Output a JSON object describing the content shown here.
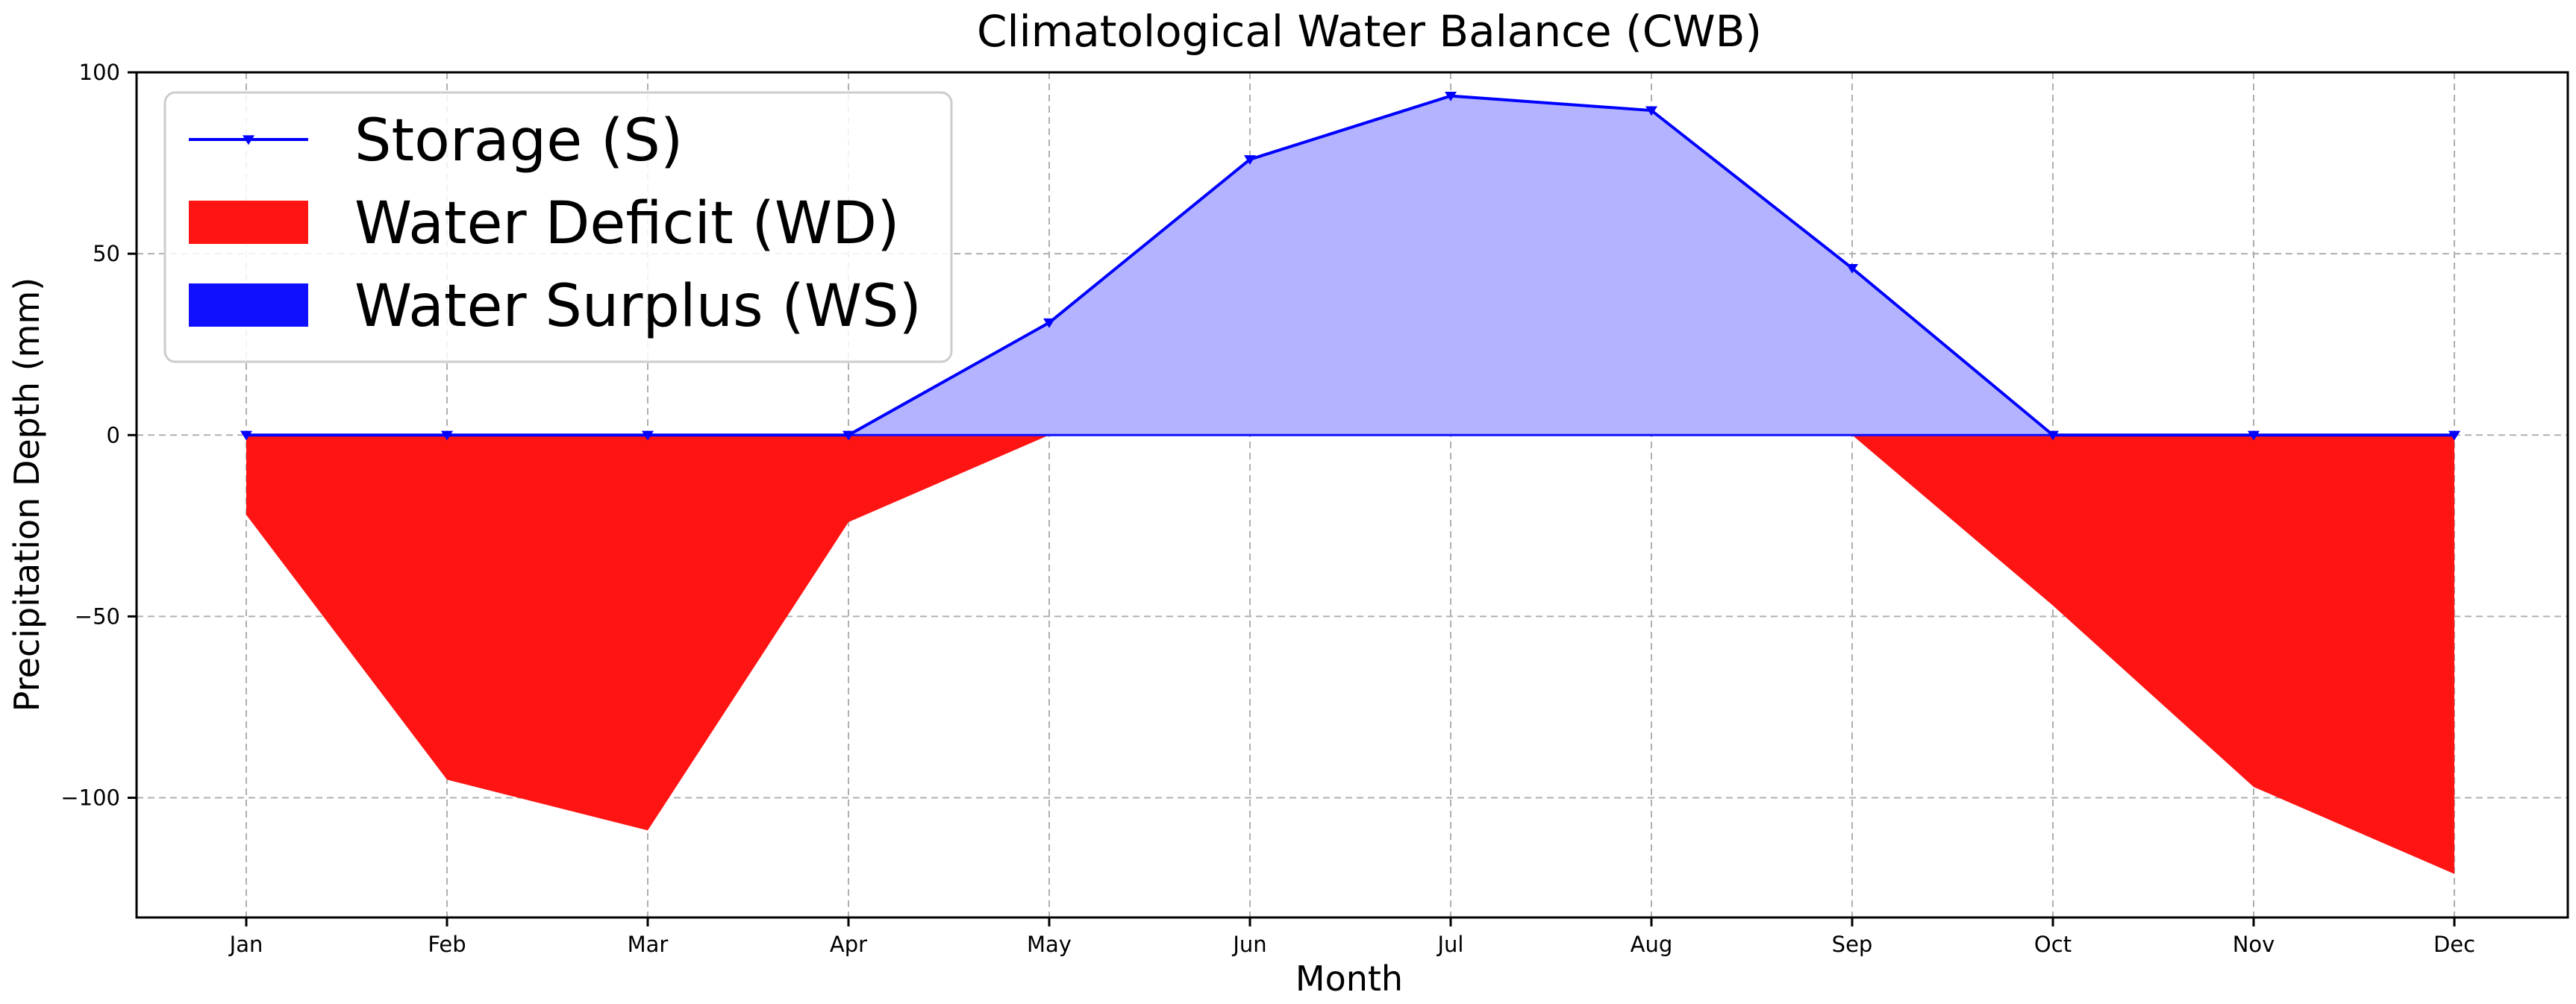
{
  "chart_data": {
    "type": "area",
    "title": "Climatological Water Balance (CWB)",
    "xlabel": "Month",
    "ylabel": "Precipitation Depth (mm)",
    "categories": [
      "Jan",
      "Feb",
      "Mar",
      "Apr",
      "May",
      "Jun",
      "Jul",
      "Aug",
      "Sep",
      "Oct",
      "Nov",
      "Dec"
    ],
    "ylim": [
      -133,
      100
    ],
    "yticks": [
      100,
      50,
      0,
      -50,
      -100
    ],
    "ytick_labels": [
      "100",
      "50",
      "0",
      "−50",
      "−100"
    ],
    "grid": true,
    "legend_position": "upper-left",
    "series": [
      {
        "name": "Storage (S)",
        "kind": "line",
        "marker": "tri_down",
        "color": "#0000ff",
        "fill_color": "#b3b3ff",
        "values": [
          0,
          0,
          0,
          0,
          31,
          76,
          93.5,
          89.5,
          46,
          0,
          0,
          0
        ]
      },
      {
        "name": "Water Deficit (WD)",
        "kind": "area",
        "color": "#ff1414",
        "values": [
          -22,
          -95,
          -109,
          -24,
          0,
          0,
          0,
          0,
          0,
          -47,
          -97,
          -121
        ]
      },
      {
        "name": "Water Surplus (WS)",
        "kind": "area",
        "color": "#1010ff",
        "values": [
          0,
          0,
          0,
          0,
          0,
          0,
          0,
          0,
          0,
          0,
          0,
          0
        ]
      }
    ]
  }
}
